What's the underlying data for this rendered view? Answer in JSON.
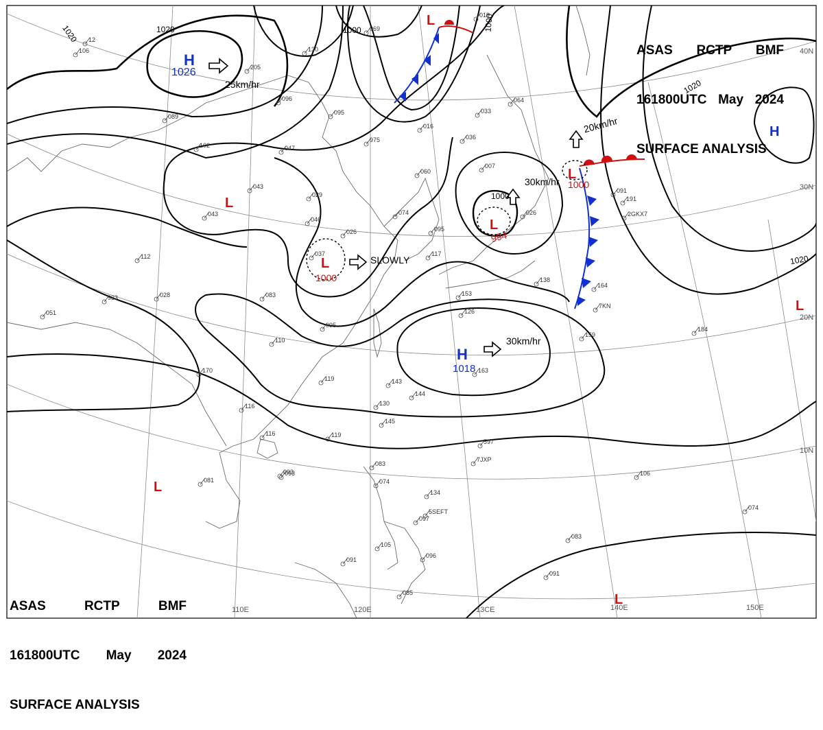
{
  "header": {
    "agency": "ASAS",
    "station": "RCTP",
    "office": "BMF",
    "time": "161800UTC",
    "month": "May",
    "year": "2024",
    "product": "SURFACE ANALYSIS"
  },
  "longitude_labels": [
    "110E",
    "120E",
    "13CE",
    "140E",
    "150E"
  ],
  "latitude_labels": [
    "40N",
    "30N",
    "20N",
    "10N"
  ],
  "isobar_labels": [
    "1020",
    "1000",
    "1000",
    "1020",
    "1020",
    "1000",
    "1020",
    "1000"
  ],
  "systems": [
    {
      "type": "H",
      "pressure": "1026",
      "motion": "25km/hr",
      "color": "#1030c8"
    },
    {
      "type": "L",
      "pressure": "",
      "color": "#d01010"
    },
    {
      "type": "L",
      "pressure": "",
      "color": "#d01010"
    },
    {
      "type": "L",
      "pressure": "1000",
      "motion": "SLOWLY",
      "color": "#d01010"
    },
    {
      "type": "L",
      "pressure": "994",
      "motion": "30km/hr",
      "color": "#d01010"
    },
    {
      "type": "L",
      "pressure": "1000",
      "motion": "20km/hr",
      "color": "#d01010"
    },
    {
      "type": "H",
      "pressure": "1018",
      "motion": "30km/hr",
      "color": "#1030c8"
    },
    {
      "type": "H",
      "pressure": "",
      "color": "#1030c8"
    },
    {
      "type": "L",
      "pressure": "",
      "color": "#d01010"
    },
    {
      "type": "L",
      "pressure": "",
      "color": "#d01010"
    },
    {
      "type": "L",
      "pressure": "",
      "color": "#d01010"
    }
  ],
  "station_reports": [
    "933",
    "051",
    "112",
    "028",
    "083",
    "095",
    "110",
    "170",
    "119",
    "116",
    "116",
    "093",
    "081",
    "093",
    "143",
    "144",
    "130",
    "145",
    "119",
    "083",
    "074",
    "134",
    "097",
    "105",
    "091",
    "096",
    "085",
    "091",
    "083",
    "074",
    "106",
    "597",
    "159",
    "164",
    "138",
    "153",
    "126",
    "163",
    "102",
    "047",
    "043",
    "043",
    "029",
    "046",
    "037",
    "026",
    "074",
    "095",
    "060",
    "016",
    "975",
    "036",
    "033",
    "007",
    "064",
    "091",
    "117",
    "089",
    "106",
    "205",
    "130",
    "096",
    "095",
    "069",
    "019",
    "184",
    "191",
    "026",
    "5SEFT",
    "7JXP",
    "7KN",
    "2GKX7",
    "12"
  ]
}
